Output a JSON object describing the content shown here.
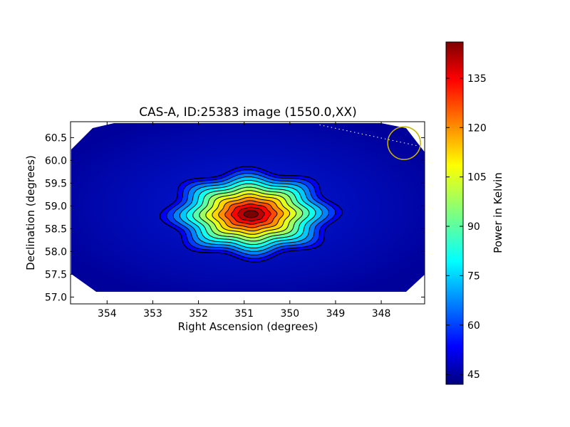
{
  "chart_data": {
    "type": "heatmap",
    "title": "CAS-A, ID:25383 image (1550.0,XX)",
    "xlabel": "Right Ascension (degrees)",
    "ylabel": "Declination (degrees)",
    "xlim": [
      354.8,
      347.05
    ],
    "ylim": [
      56.85,
      60.85
    ],
    "x_ticks": [
      "354",
      "353",
      "352",
      "351",
      "350",
      "349",
      "348"
    ],
    "y_ticks": [
      "57.0",
      "57.5",
      "58.0",
      "58.5",
      "59.0",
      "59.5",
      "60.0",
      "60.5"
    ],
    "source_peak": {
      "ra": 350.85,
      "dec": 58.82,
      "value": 140
    },
    "background_value": 44,
    "contour_count": 12,
    "marker_circle": {
      "ra": 347.5,
      "dec": 60.38,
      "color": "#c8b400"
    },
    "dotted_line": {
      "from": [
        349.35,
        60.78
      ],
      "to": [
        347.2,
        60.32
      ]
    },
    "colorbar": {
      "label": "Power in Kelvin",
      "min": 42,
      "max": 146,
      "ticks": [
        "45",
        "60",
        "75",
        "90",
        "105",
        "120",
        "135"
      ],
      "colormap": "jet"
    }
  }
}
